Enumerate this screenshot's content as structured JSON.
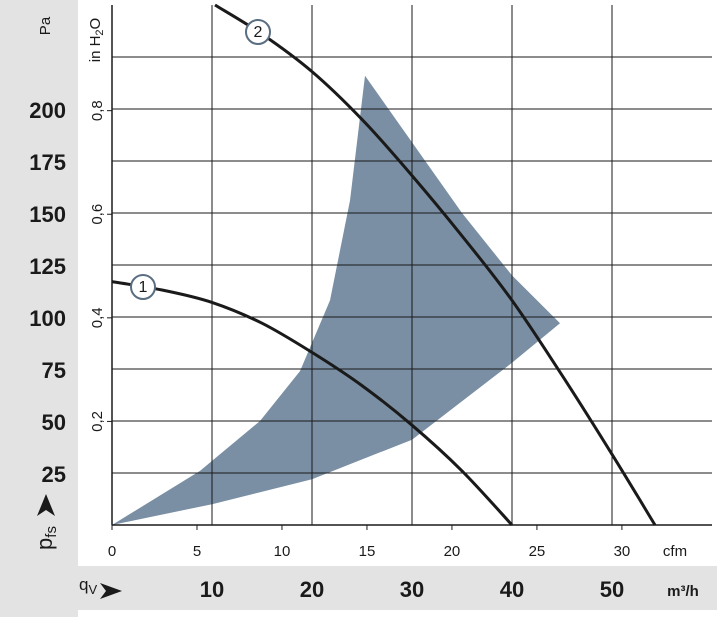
{
  "chart_data": {
    "type": "line",
    "y_unit": "Pa",
    "y2_unit_main": "in H",
    "y2_unit_sub": "2",
    "y2_unit_end": "O",
    "x_unit": "m³/h",
    "x2_unit": "cfm",
    "y_symbol": "p",
    "y_symbol_sub": "fs",
    "x_symbol": "q",
    "x_symbol_sub": "V",
    "xlim": [
      0,
      60
    ],
    "xticks": [
      10,
      20,
      30,
      40,
      50
    ],
    "ylim": [
      0,
      250
    ],
    "yticks": [
      25,
      50,
      75,
      100,
      125,
      150,
      175,
      200
    ],
    "ygrid": [
      25,
      50,
      75,
      100,
      125,
      150,
      175,
      200,
      225
    ],
    "x2lim": [
      0,
      35.3
    ],
    "x2ticks": [
      0,
      5,
      10,
      15,
      20,
      25,
      30
    ],
    "y2lim": [
      0,
      1.004
    ],
    "y2ticks": [
      {
        "value": 0.2,
        "label": "0,2"
      },
      {
        "value": 0.4,
        "label": "0,4"
      },
      {
        "value": 0.6,
        "label": "0,6"
      },
      {
        "value": 0.8,
        "label": "0,8"
      }
    ],
    "grid": true,
    "operating_range": {
      "color": "#7a8fa3",
      "x": [
        0,
        8.8,
        14.8,
        18.8,
        21.8,
        23.8,
        25.3,
        30,
        35,
        40,
        44.8,
        40,
        30,
        20,
        10
      ],
      "values": [
        0,
        26,
        50,
        74,
        108,
        156,
        216,
        184,
        150,
        120,
        97,
        78,
        41,
        22,
        10
      ]
    },
    "series": [
      {
        "name": "1",
        "color": "#1a1a1a",
        "x": [
          0,
          5,
          10,
          15,
          20,
          25,
          30,
          35,
          40
        ],
        "values": [
          117,
          113,
          107,
          97,
          83,
          67,
          48,
          26,
          0
        ]
      },
      {
        "name": "2",
        "color": "#1a1a1a",
        "x": [
          10.3,
          15,
          20,
          25,
          30,
          35,
          40,
          45,
          50,
          54.3
        ],
        "values": [
          250,
          236,
          218,
          195,
          168,
          139,
          108,
          72,
          34,
          0
        ]
      }
    ]
  }
}
